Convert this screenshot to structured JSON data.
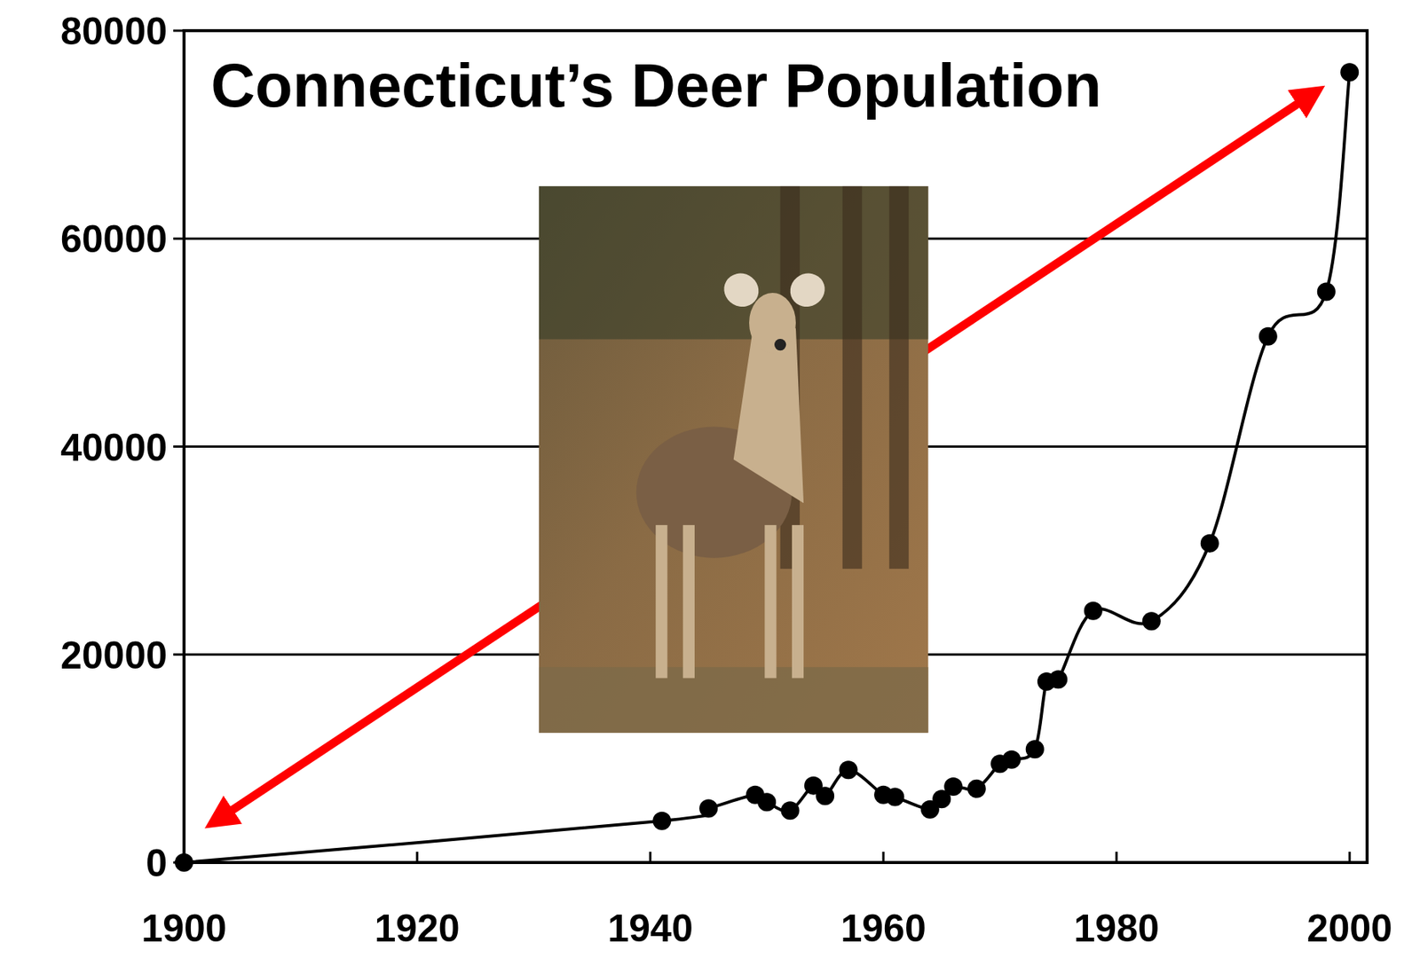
{
  "chart_data": {
    "type": "line",
    "title": "Connecticut’s Deer Population",
    "x": [
      1900,
      1941,
      1945,
      1949,
      1950,
      1952,
      1954,
      1955,
      1957,
      1960,
      1961,
      1964,
      1965,
      1966,
      1968,
      1970,
      1971,
      1973,
      1974,
      1975,
      1978,
      1983,
      1988,
      1993,
      1998,
      2000
    ],
    "values": [
      0,
      4000,
      5200,
      6500,
      5800,
      5000,
      7400,
      6400,
      8900,
      6500,
      6300,
      5100,
      6100,
      7300,
      7100,
      9500,
      9900,
      10900,
      17400,
      17600,
      24200,
      23200,
      30700,
      50600,
      54900,
      76000
    ],
    "color": "#000000",
    "marker": "circle",
    "xlim": [
      1900,
      2001.5
    ],
    "xticks": [
      1900,
      1920,
      1940,
      1960,
      1980,
      2000
    ],
    "ylim": [
      0,
      80000
    ],
    "yticks": [
      0,
      20000,
      40000,
      60000,
      80000
    ],
    "grid": true
  }
}
